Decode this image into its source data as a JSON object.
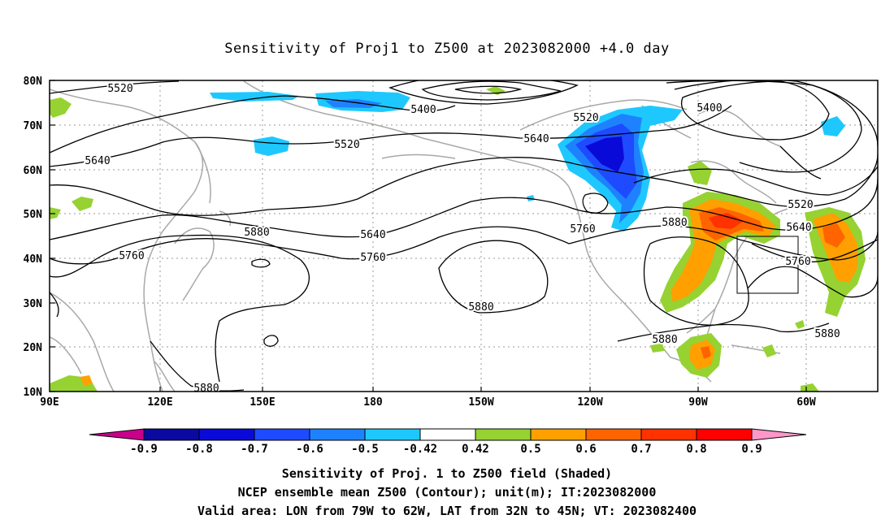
{
  "title": "Sensitivity of Proj1 to Z500 at 2023082000 +4.0 day",
  "axes": {
    "lat_labels": [
      "80N",
      "70N",
      "60N",
      "50N",
      "40N",
      "30N",
      "20N",
      "10N"
    ],
    "lon_labels": [
      "90E",
      "120E",
      "150E",
      "180",
      "150W",
      "120W",
      "90W",
      "60W"
    ]
  },
  "contour_labels": [
    "5520",
    "5400",
    "5520",
    "5640",
    "5520",
    "5400",
    "5640",
    "5520",
    "5640",
    "5760",
    "5880",
    "5760",
    "5880",
    "5640",
    "5760",
    "5880",
    "5880",
    "5880",
    "5760",
    "5880"
  ],
  "colorbar": {
    "labels": [
      "-0.9",
      "-0.8",
      "-0.7",
      "-0.6",
      "-0.5",
      "-0.42",
      "0.42",
      "0.5",
      "0.6",
      "0.7",
      "0.8",
      "0.9"
    ],
    "colors": [
      "#c8008c",
      "#0a0aa0",
      "#0a0ad8",
      "#1e4bff",
      "#1e82ff",
      "#1ec8ff",
      "#ffffff",
      "#96d232",
      "#ffa000",
      "#ff6400",
      "#ff3200",
      "#ff0000",
      "#ff96c8"
    ]
  },
  "shading_colors": {
    "neg_light": "#1ec8ff",
    "neg_mid": "#1e82ff",
    "neg_dark": "#1e4bff",
    "neg_darkest": "#0a0ad8",
    "pos_green": "#96d232",
    "pos_orange": "#ffa000",
    "pos_dark_orange": "#ff6400",
    "pos_red": "#ff3200"
  },
  "captions": [
    "Sensitivity of Proj. 1 to Z500 field (Shaded)",
    "NCEP ensemble mean Z500 (Contour); unit(m); IT:2023082000",
    "Valid area: LON from 79W to 62W, LAT from 32N to 45N; VT: 2023082400"
  ]
}
